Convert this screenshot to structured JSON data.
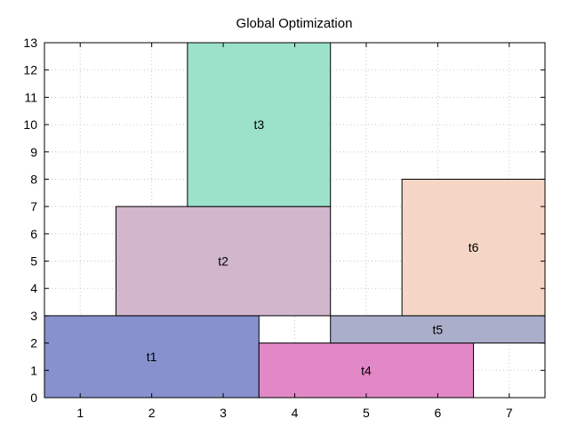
{
  "chart_data": {
    "type": "rectangles",
    "title": "Global Optimization",
    "xlabel": "",
    "ylabel": "",
    "xlim": [
      0.5,
      7.5
    ],
    "ylim": [
      0,
      13
    ],
    "x_ticks": [
      1,
      2,
      3,
      4,
      5,
      6,
      7
    ],
    "y_ticks": [
      0,
      1,
      2,
      3,
      4,
      5,
      6,
      7,
      8,
      9,
      10,
      11,
      12,
      13
    ],
    "grid": true,
    "legend": "none",
    "rectangles": [
      {
        "label": "t1",
        "x0": 0.5,
        "x1": 3.5,
        "y0": 0,
        "y1": 3,
        "color": "#8791cd"
      },
      {
        "label": "t2",
        "x0": 1.5,
        "x1": 4.5,
        "y0": 3,
        "y1": 7,
        "color": "#d1b6cc"
      },
      {
        "label": "t3",
        "x0": 2.5,
        "x1": 4.5,
        "y0": 7,
        "y1": 13,
        "color": "#9ce2cb"
      },
      {
        "label": "t4",
        "x0": 3.5,
        "x1": 6.5,
        "y0": 0,
        "y1": 2,
        "color": "#e388c7"
      },
      {
        "label": "t5",
        "x0": 4.5,
        "x1": 7.5,
        "y0": 2,
        "y1": 3,
        "color": "#aaaecb"
      },
      {
        "label": "t6",
        "x0": 5.5,
        "x1": 7.5,
        "y0": 3,
        "y1": 8,
        "color": "#f5d6c6"
      }
    ]
  }
}
